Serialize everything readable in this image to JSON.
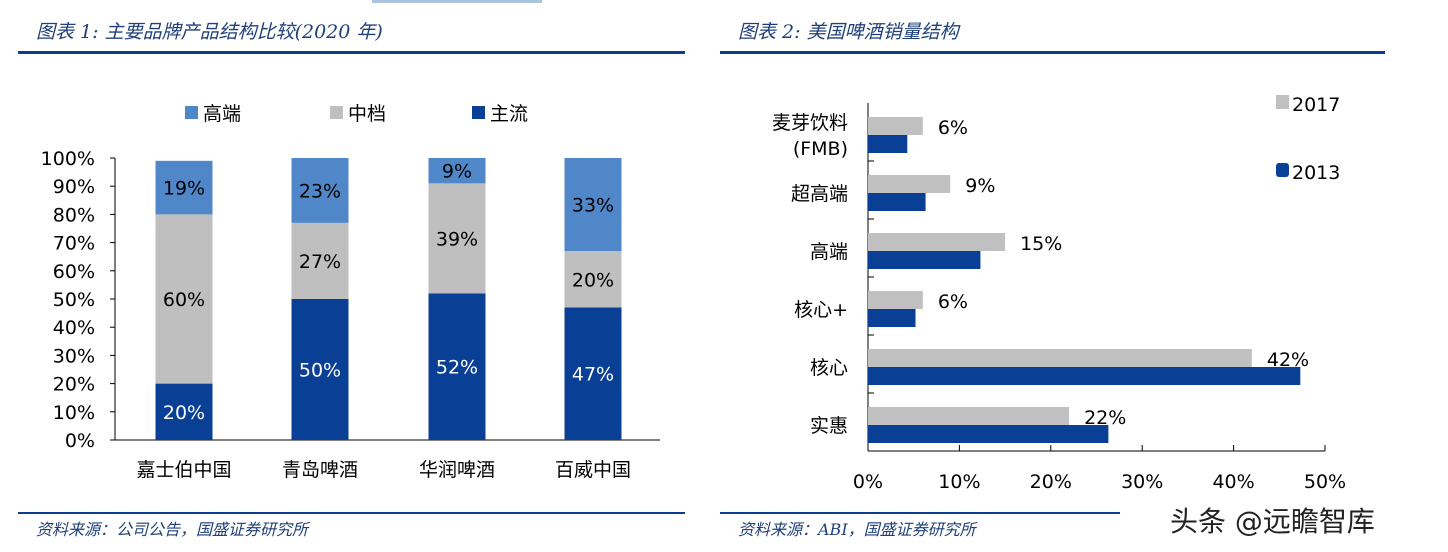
{
  "left": {
    "title": "图表 1:  主要品牌产品结构比较(2020 年)",
    "source": "资料来源：公司公告，国盛证券研究所"
  },
  "right": {
    "title": "图表 2:  美国啤酒销量结构",
    "source": "资料来源：ABI，国盛证券研究所"
  },
  "watermark": "头条 @远瞻智库",
  "chart_data": [
    {
      "type": "bar",
      "stacked": true,
      "orientation": "vertical",
      "categories": [
        "嘉士伯中国",
        "青岛啤酒",
        "华润啤酒",
        "百威中国"
      ],
      "series": [
        {
          "name": "主流",
          "color": "#0a3f96",
          "values": [
            20,
            50,
            52,
            47
          ],
          "labels": [
            "20%",
            "50%",
            "52%",
            "47%"
          ]
        },
        {
          "name": "中档",
          "color": "#bfbfbf",
          "values": [
            60,
            27,
            39,
            20
          ],
          "labels": [
            "60%",
            "27%",
            "39%",
            "20%"
          ]
        },
        {
          "name": "高端",
          "color": "#4f87c9",
          "values": [
            19,
            23,
            9,
            33
          ],
          "labels": [
            "19%",
            "23%",
            "9%",
            "33%"
          ]
        }
      ],
      "legend_order": [
        "高端",
        "中档",
        "主流"
      ],
      "legend": "top",
      "ylim": [
        0,
        100
      ],
      "yticks": [
        "0%",
        "10%",
        "20%",
        "30%",
        "40%",
        "50%",
        "60%",
        "70%",
        "80%",
        "90%",
        "100%"
      ],
      "grid": false
    },
    {
      "type": "bar",
      "orientation": "horizontal",
      "categories": [
        "麦芽饮料\n(FMB)",
        "超高端",
        "高端",
        "核心+",
        "核心",
        "实惠"
      ],
      "category_lines": [
        [
          "麦芽饮料",
          "(FMB)"
        ],
        [
          "超高端"
        ],
        [
          "高端"
        ],
        [
          "核心+"
        ],
        [
          "核心"
        ],
        [
          "实惠"
        ]
      ],
      "series": [
        {
          "name": "2017",
          "color": "#c0c0c0",
          "values": [
            6,
            9,
            15,
            6,
            42,
            22
          ],
          "labels": [
            "6%",
            "9%",
            "15%",
            "6%",
            "42%",
            "22%"
          ]
        },
        {
          "name": "2013",
          "color": "#0a3f96",
          "values": [
            4.3,
            6.3,
            12.3,
            5.2,
            47.3,
            26.3
          ]
        }
      ],
      "legend": "right",
      "xlim": [
        0,
        50
      ],
      "xticks": [
        "0%",
        "10%",
        "20%",
        "30%",
        "40%",
        "50%"
      ],
      "grid": false
    }
  ]
}
